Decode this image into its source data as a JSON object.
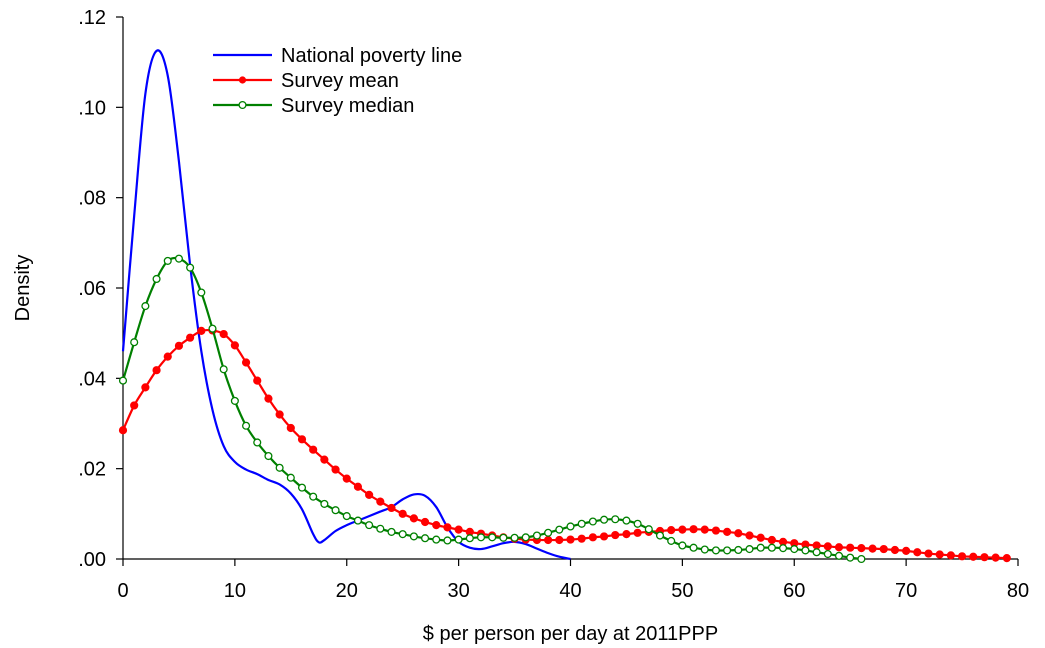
{
  "chart_data": {
    "type": "line",
    "xlabel": "$ per person per day at 2011PPP",
    "ylabel": "Density",
    "xlim": [
      0,
      80
    ],
    "ylim": [
      0,
      0.12
    ],
    "x_ticks": [
      0,
      10,
      20,
      30,
      40,
      50,
      60,
      70,
      80
    ],
    "x_tick_labels": [
      "0",
      "10",
      "20",
      "30",
      "40",
      "50",
      "60",
      "70",
      "80"
    ],
    "y_ticks": [
      0,
      0.02,
      0.04,
      0.06,
      0.08,
      0.1,
      0.12
    ],
    "y_tick_labels": [
      ".00",
      ".02",
      ".04",
      ".06",
      ".08",
      ".10",
      ".12"
    ],
    "grid": false,
    "legend_position": "top-left",
    "series": [
      {
        "name": "National poverty line",
        "color": "#0000ff",
        "marker": "none",
        "x": [
          0,
          1,
          2,
          3,
          4,
          5,
          6,
          7,
          8,
          9,
          10,
          11,
          12,
          13,
          14,
          15,
          16,
          17,
          17.5,
          18,
          19,
          20,
          21,
          22,
          23,
          24,
          25,
          26,
          27,
          28,
          29,
          30,
          31,
          32,
          33,
          34,
          35,
          36,
          37,
          38,
          39,
          40
        ],
        "y": [
          0.046,
          0.076,
          0.103,
          0.1125,
          0.107,
          0.088,
          0.065,
          0.046,
          0.033,
          0.025,
          0.0215,
          0.0198,
          0.0188,
          0.0175,
          0.0165,
          0.0145,
          0.011,
          0.0055,
          0.0037,
          0.0042,
          0.0062,
          0.0075,
          0.0085,
          0.0095,
          0.0105,
          0.0115,
          0.0132,
          0.0143,
          0.014,
          0.0115,
          0.007,
          0.0038,
          0.0025,
          0.0022,
          0.0028,
          0.0035,
          0.0038,
          0.0033,
          0.0023,
          0.0013,
          0.0005,
          0.0
        ]
      },
      {
        "name": "Survey mean",
        "color": "#ff0000",
        "marker": "filled-circle",
        "x": [
          0,
          1,
          2,
          3,
          4,
          5,
          6,
          7,
          8,
          9,
          10,
          11,
          12,
          13,
          14,
          15,
          16,
          17,
          18,
          19,
          20,
          21,
          22,
          23,
          24,
          25,
          26,
          27,
          28,
          29,
          30,
          31,
          32,
          33,
          34,
          35,
          36,
          37,
          38,
          39,
          40,
          41,
          42,
          43,
          44,
          45,
          46,
          47,
          48,
          49,
          50,
          51,
          52,
          53,
          54,
          55,
          56,
          57,
          58,
          59,
          60,
          61,
          62,
          63,
          64,
          65,
          66,
          67,
          68,
          69,
          70,
          71,
          72,
          73,
          74,
          75,
          76,
          77,
          78,
          79
        ],
        "y": [
          0.0285,
          0.034,
          0.038,
          0.0418,
          0.0448,
          0.0472,
          0.049,
          0.0505,
          0.0506,
          0.0498,
          0.0473,
          0.0435,
          0.0395,
          0.0355,
          0.032,
          0.029,
          0.0265,
          0.0242,
          0.022,
          0.0198,
          0.0178,
          0.016,
          0.0142,
          0.0127,
          0.0113,
          0.01,
          0.009,
          0.0082,
          0.0075,
          0.007,
          0.0065,
          0.006,
          0.0056,
          0.0052,
          0.0048,
          0.0045,
          0.0043,
          0.0042,
          0.0042,
          0.0042,
          0.0043,
          0.0045,
          0.0048,
          0.005,
          0.0053,
          0.0055,
          0.0058,
          0.006,
          0.0062,
          0.0064,
          0.0065,
          0.0066,
          0.0065,
          0.0063,
          0.006,
          0.0057,
          0.0052,
          0.0047,
          0.0042,
          0.0038,
          0.0035,
          0.0032,
          0.003,
          0.0028,
          0.0026,
          0.0025,
          0.0024,
          0.0023,
          0.0022,
          0.002,
          0.0018,
          0.0015,
          0.0012,
          0.001,
          0.0008,
          0.0006,
          0.0005,
          0.0004,
          0.0003,
          0.0002
        ]
      },
      {
        "name": "Survey median",
        "color": "#008000",
        "marker": "open-circle",
        "x": [
          0,
          1,
          2,
          3,
          4,
          5,
          6,
          7,
          8,
          9,
          10,
          11,
          12,
          13,
          14,
          15,
          16,
          17,
          18,
          19,
          20,
          21,
          22,
          23,
          24,
          25,
          26,
          27,
          28,
          29,
          30,
          31,
          32,
          33,
          34,
          35,
          36,
          37,
          38,
          39,
          40,
          41,
          42,
          43,
          44,
          45,
          46,
          47,
          48,
          49,
          50,
          51,
          52,
          53,
          54,
          55,
          56,
          57,
          58,
          59,
          60,
          61,
          62,
          63,
          64,
          65,
          66
        ],
        "y": [
          0.0395,
          0.048,
          0.056,
          0.062,
          0.066,
          0.0665,
          0.0645,
          0.059,
          0.051,
          0.042,
          0.035,
          0.0295,
          0.0258,
          0.0228,
          0.0202,
          0.018,
          0.0158,
          0.0138,
          0.0122,
          0.0108,
          0.0095,
          0.0085,
          0.0075,
          0.0067,
          0.006,
          0.0055,
          0.005,
          0.0046,
          0.0043,
          0.0041,
          0.0043,
          0.0046,
          0.0048,
          0.0048,
          0.0047,
          0.0047,
          0.0048,
          0.0052,
          0.0058,
          0.0065,
          0.0072,
          0.0078,
          0.0083,
          0.0087,
          0.0088,
          0.0085,
          0.0078,
          0.0066,
          0.0052,
          0.004,
          0.003,
          0.0025,
          0.0021,
          0.0019,
          0.0019,
          0.002,
          0.0022,
          0.0025,
          0.0025,
          0.0024,
          0.0022,
          0.0019,
          0.0015,
          0.0011,
          0.0007,
          0.0003,
          0.0
        ]
      }
    ]
  }
}
